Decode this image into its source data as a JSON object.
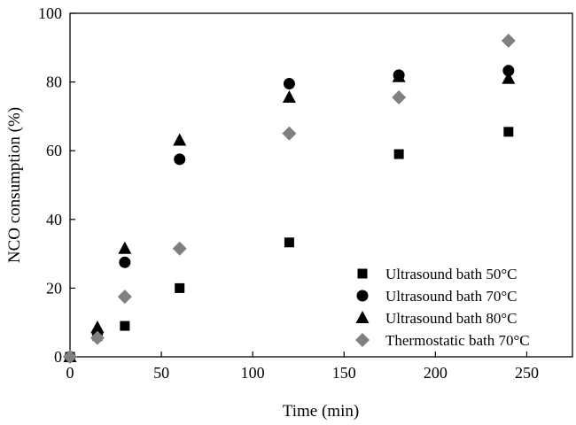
{
  "chart_data": {
    "type": "scatter",
    "xlabel": "Time (min)",
    "ylabel": "NCO consumption (%)",
    "xlim": [
      0,
      275
    ],
    "ylim": [
      0,
      100
    ],
    "xticks": [
      0,
      50,
      100,
      150,
      200,
      250
    ],
    "yticks": [
      0,
      20,
      40,
      60,
      80,
      100
    ],
    "xtick_labels": [
      "0",
      "50",
      "100",
      "150",
      "200",
      "250"
    ],
    "ytick_labels": [
      "0",
      "20",
      "40",
      "60",
      "80",
      "100"
    ],
    "grid": false,
    "legend_position": "bottom-right",
    "series": [
      {
        "name": "Ultrasound bath 50°C",
        "marker": "square",
        "color": "#000000",
        "x": [
          0,
          15,
          30,
          60,
          120,
          180,
          240
        ],
        "y": [
          0,
          6,
          9,
          20,
          33.3,
          59,
          65.5
        ]
      },
      {
        "name": "Ultrasound bath 70°C",
        "marker": "circle",
        "color": "#000000",
        "x": [
          0,
          15,
          30,
          60,
          120,
          180,
          240
        ],
        "y": [
          0,
          7,
          27.5,
          57.5,
          79.5,
          82,
          83.3
        ]
      },
      {
        "name": "Ultrasound bath 80°C",
        "marker": "triangle",
        "color": "#000000",
        "x": [
          0,
          15,
          30,
          60,
          120,
          180,
          240
        ],
        "y": [
          0,
          8.5,
          31.5,
          63,
          75.5,
          81.5,
          81
        ]
      },
      {
        "name": "Thermostatic bath 70°C",
        "marker": "diamond",
        "color": "#808080",
        "x": [
          0,
          15,
          30,
          60,
          120,
          180,
          240
        ],
        "y": [
          0,
          5.5,
          17.5,
          31.5,
          65,
          75.5,
          92
        ]
      }
    ]
  }
}
